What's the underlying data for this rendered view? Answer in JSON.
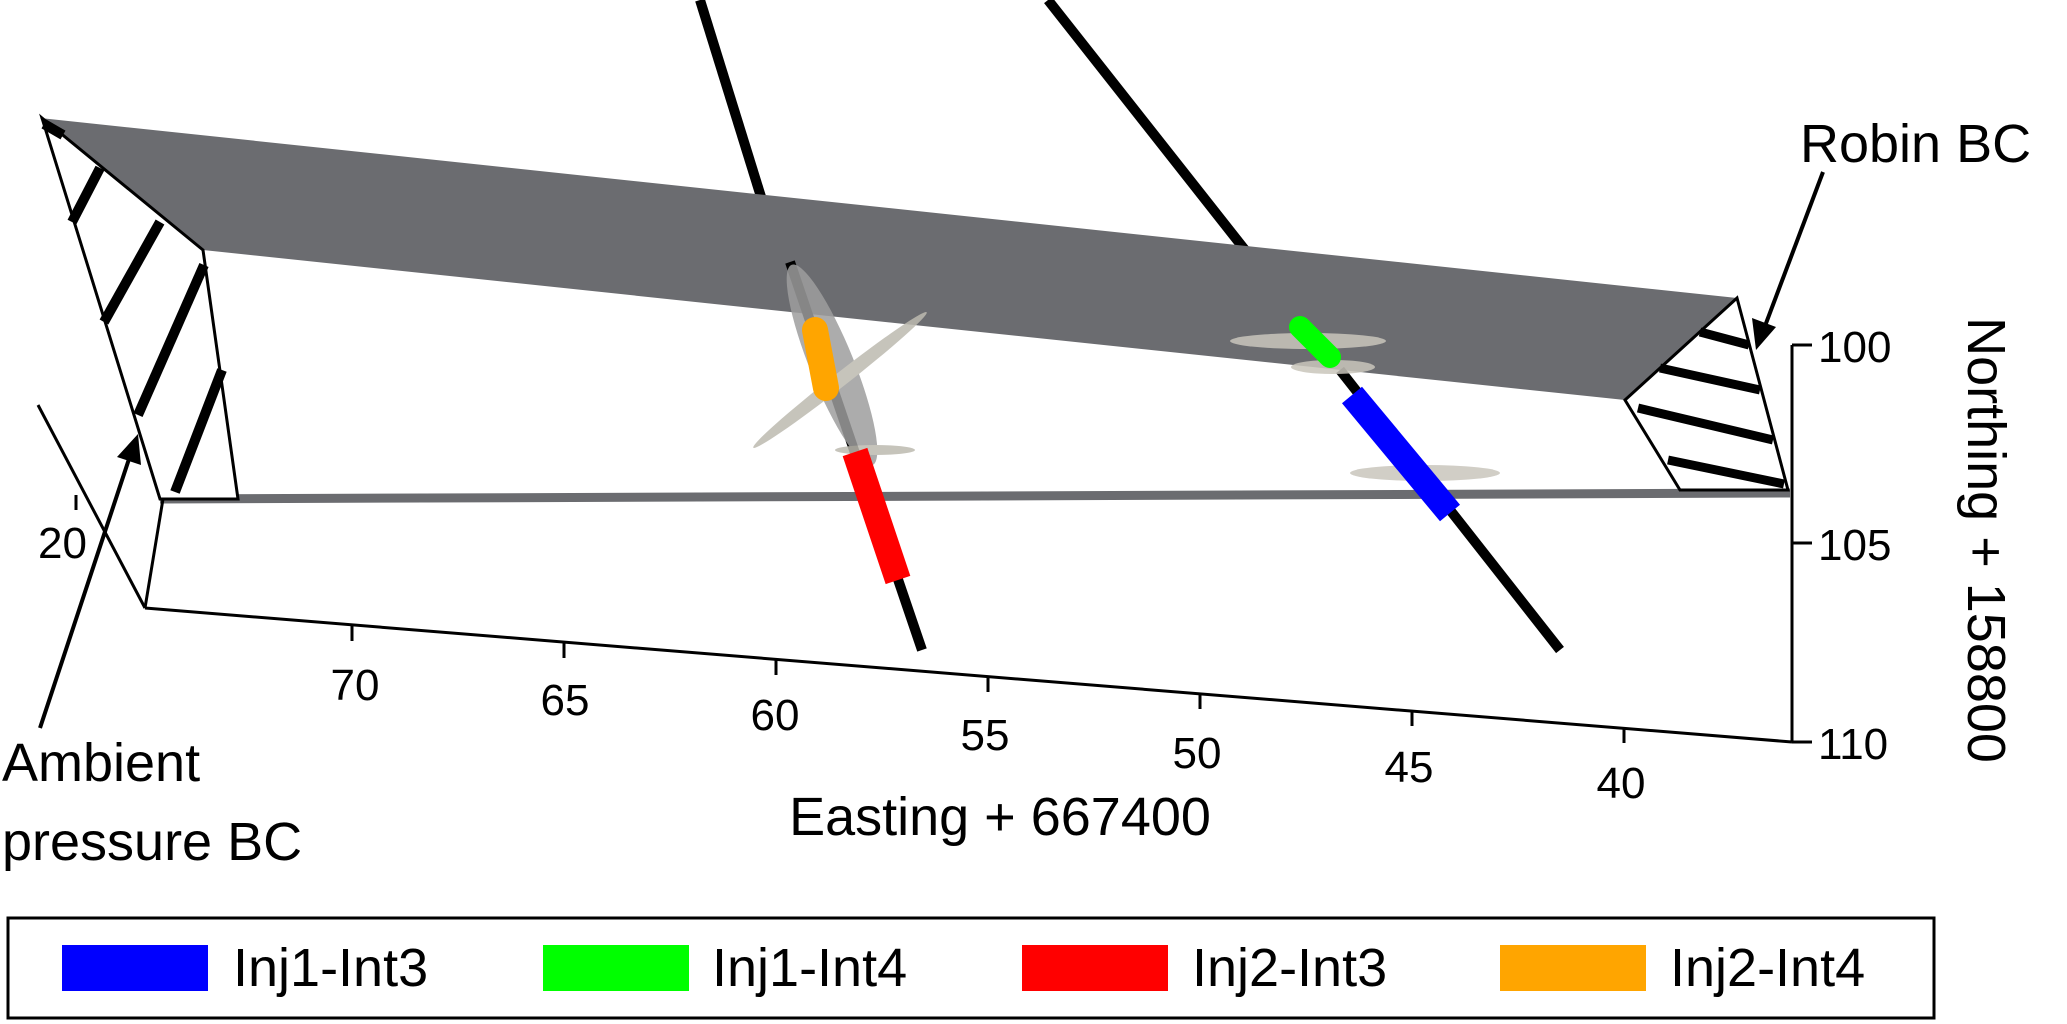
{
  "annotations": {
    "robin_bc": "Robin BC",
    "ambient_line1": "Ambient",
    "ambient_line2": "pressure BC"
  },
  "axes": {
    "easting": {
      "label": "Easting + 667400",
      "ticks": [
        "70",
        "65",
        "60",
        "55",
        "50",
        "45",
        "40"
      ]
    },
    "northing": {
      "label": "Northing + 158800",
      "ticks": [
        "100",
        "105",
        "110"
      ]
    },
    "extra_tick": "20"
  },
  "legend": {
    "items": [
      {
        "label": "Inj1-Int3",
        "color": "#0000FF"
      },
      {
        "label": "Inj1-Int4",
        "color": "#00FF00"
      },
      {
        "label": "Inj2-Int3",
        "color": "#FF0000"
      },
      {
        "label": "Inj2-Int4",
        "color": "#FFA500"
      }
    ]
  },
  "colors": {
    "fracture_plane": "#6B6C70",
    "frame": "#000000"
  }
}
